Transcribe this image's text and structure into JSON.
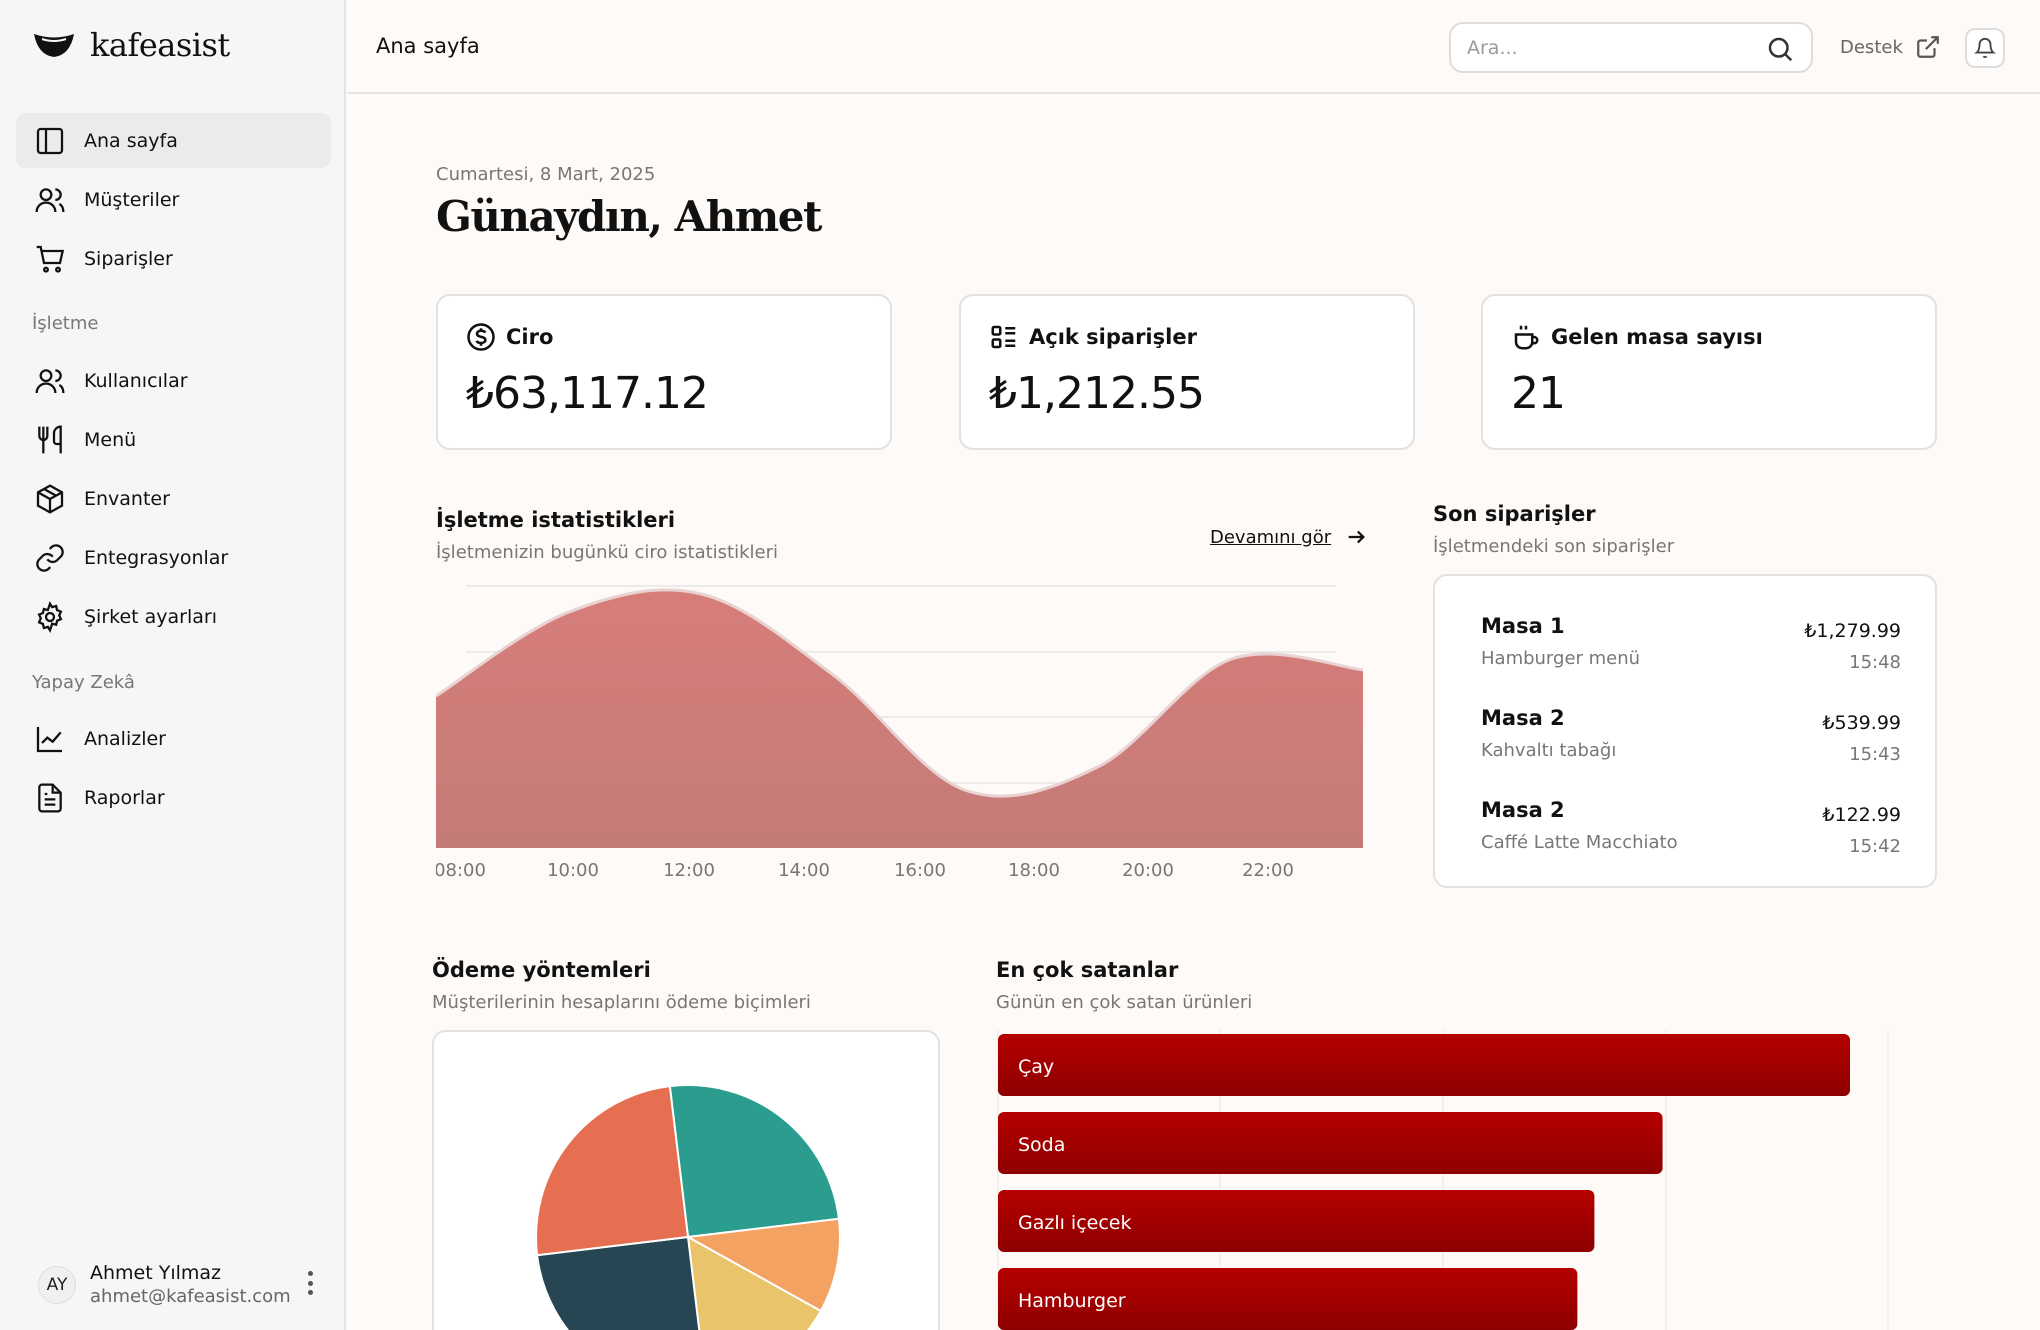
{
  "app": {
    "brand": "kafeasist"
  },
  "sidebar": {
    "items": [
      {
        "label": "Ana sayfa"
      },
      {
        "label": "Müşteriler"
      },
      {
        "label": "Siparişler"
      }
    ],
    "sections": [
      {
        "label": "İşletme",
        "items": [
          {
            "label": "Kullanıcılar"
          },
          {
            "label": "Menü"
          },
          {
            "label": "Envanter"
          },
          {
            "label": "Entegrasyonlar"
          },
          {
            "label": "Şirket ayarları"
          }
        ]
      },
      {
        "label": "Yapay Zekâ",
        "items": [
          {
            "label": "Analizler"
          },
          {
            "label": "Raporlar"
          }
        ]
      }
    ],
    "user": {
      "initials": "AY",
      "name": "Ahmet Yılmaz",
      "email": "ahmet@kafeasist.com"
    }
  },
  "header": {
    "title": "Ana sayfa",
    "search_placeholder": "Ara...",
    "support_label": "Destek"
  },
  "main": {
    "date": "Cumartesi, 8 Mart, 2025",
    "greeting": "Günaydın, Ahmet",
    "cards": [
      {
        "label": "Ciro",
        "value": "₺63,117.12"
      },
      {
        "label": "Açık siparişler",
        "value": "₺1,212.55"
      },
      {
        "label": "Gelen masa sayısı",
        "value": "21"
      }
    ],
    "stats": {
      "title": "İşletme istatistikleri",
      "subtitle": "İşletmenizin bugünkü ciro istatistikleri",
      "more_label": "Devamını gör"
    },
    "recent": {
      "title": "Son siparişler",
      "subtitle": "İşletmendeki son siparişler",
      "orders": [
        {
          "table": "Masa 1",
          "item": "Hamburger menü",
          "price": "₺1,279.99",
          "time": "15:48"
        },
        {
          "table": "Masa 2",
          "item": "Kahvaltı tabağı",
          "price": "₺539.99",
          "time": "15:43"
        },
        {
          "table": "Masa 2",
          "item": "Caffé Latte Macchiato",
          "price": "₺122.99",
          "time": "15:42"
        }
      ]
    },
    "payments": {
      "title": "Ödeme yöntemleri",
      "subtitle": "Müşterilerinin hesaplarını ödeme biçimleri"
    },
    "bestsellers": {
      "title": "En çok satanlar",
      "subtitle": "Günün en çok satan ürünleri"
    }
  },
  "colors": {
    "area_fill": "#cf7878",
    "bar_fill": "#a80000",
    "pie": [
      "#2a9d8f",
      "#f4a261",
      "#e9c46a",
      "#264653",
      "#e76f51"
    ]
  },
  "chart_data": [
    {
      "type": "area",
      "title": "İşletme istatistikleri",
      "x": [
        "08:00",
        "10:00",
        "12:00",
        "14:00",
        "16:00",
        "18:00",
        "20:00",
        "22:00"
      ],
      "y_rel": [
        0.58,
        0.9,
        0.97,
        0.66,
        0.22,
        0.31,
        0.72,
        0.68
      ],
      "grid": true
    },
    {
      "type": "pie",
      "title": "Ödeme yöntemleri",
      "slices": [
        {
          "value": 25
        },
        {
          "value": 10
        },
        {
          "value": 15
        },
        {
          "value": 25
        },
        {
          "value": 25
        }
      ]
    },
    {
      "type": "bar",
      "orientation": "horizontal",
      "title": "En çok satanlar",
      "categories": [
        "Çay",
        "Soda",
        "Gazlı içecek",
        "Hamburger"
      ],
      "values": [
        100,
        78,
        70,
        68
      ],
      "xlim": [
        0,
        105
      ]
    }
  ]
}
